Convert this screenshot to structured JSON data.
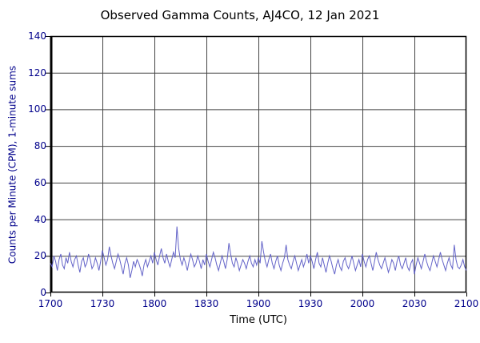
{
  "title": "Observed Gamma Counts, AJ4CO, 12 Jan 2021",
  "colors": {
    "series_line": "#6363c8",
    "grid_line": "#444444",
    "plot_border": "#000000",
    "tick_text": "#00008b",
    "title_text": "#000000",
    "background": "#ffffff"
  },
  "chart_data": {
    "type": "line",
    "title": "Observed Gamma Counts, AJ4CO, 12 Jan 2021",
    "xlabel": "Time (UTC)",
    "ylabel": "Counts per Minute (CPM), 1-minute sums",
    "x_tick_labels": [
      "1700",
      "1730",
      "1800",
      "1830",
      "1900",
      "1930",
      "2000",
      "2030",
      "2100"
    ],
    "x_tick_minutes": [
      0,
      30,
      60,
      90,
      120,
      150,
      180,
      210,
      240
    ],
    "x_range_minutes": [
      0,
      240
    ],
    "y_ticks": [
      0,
      20,
      40,
      60,
      80,
      100,
      120,
      140
    ],
    "ylim": [
      0,
      140
    ],
    "grid": true,
    "legend": "none",
    "series": [
      {
        "name": "observed-gamma-counts-cpm",
        "color": "#6363c8",
        "x_start_minute": 0,
        "x_step_minutes": 1,
        "values": [
          16,
          14,
          20,
          17,
          12,
          18,
          21,
          15,
          13,
          19,
          16,
          22,
          17,
          14,
          18,
          20,
          15,
          11,
          17,
          19,
          14,
          16,
          21,
          18,
          13,
          15,
          19,
          16,
          12,
          17,
          23,
          19,
          15,
          18,
          25,
          20,
          16,
          13,
          17,
          21,
          18,
          14,
          10,
          16,
          19,
          15,
          8,
          12,
          17,
          14,
          18,
          16,
          13,
          9,
          15,
          18,
          14,
          17,
          20,
          16,
          22,
          18,
          15,
          20,
          24,
          19,
          16,
          21,
          17,
          14,
          18,
          22,
          19,
          36,
          24,
          18,
          15,
          19,
          16,
          12,
          17,
          21,
          18,
          14,
          16,
          20,
          17,
          13,
          18,
          15,
          21,
          17,
          14,
          18,
          22,
          19,
          15,
          12,
          16,
          20,
          17,
          13,
          18,
          27,
          21,
          16,
          14,
          19,
          16,
          12,
          15,
          18,
          16,
          13,
          17,
          20,
          16,
          14,
          18,
          15,
          19,
          16,
          28,
          22,
          17,
          14,
          18,
          21,
          16,
          13,
          17,
          20,
          15,
          12,
          16,
          19,
          26,
          18,
          15,
          13,
          17,
          20,
          16,
          12,
          15,
          18,
          14,
          17,
          21,
          16,
          20,
          17,
          13,
          18,
          22,
          16,
          14,
          19,
          15,
          11,
          16,
          20,
          17,
          13,
          10,
          15,
          18,
          14,
          12,
          17,
          19,
          15,
          13,
          16,
          20,
          16,
          12,
          15,
          18,
          14,
          21,
          17,
          14,
          18,
          20,
          16,
          12,
          17,
          22,
          18,
          15,
          13,
          16,
          19,
          15,
          11,
          14,
          18,
          16,
          12,
          17,
          20,
          15,
          13,
          16,
          19,
          14,
          12,
          16,
          18,
          10,
          15,
          19,
          16,
          13,
          17,
          21,
          17,
          14,
          12,
          16,
          20,
          17,
          14,
          18,
          22,
          18,
          15,
          12,
          16,
          19,
          15,
          13,
          26,
          18,
          14,
          13,
          15,
          18,
          14,
          12
        ]
      }
    ]
  }
}
